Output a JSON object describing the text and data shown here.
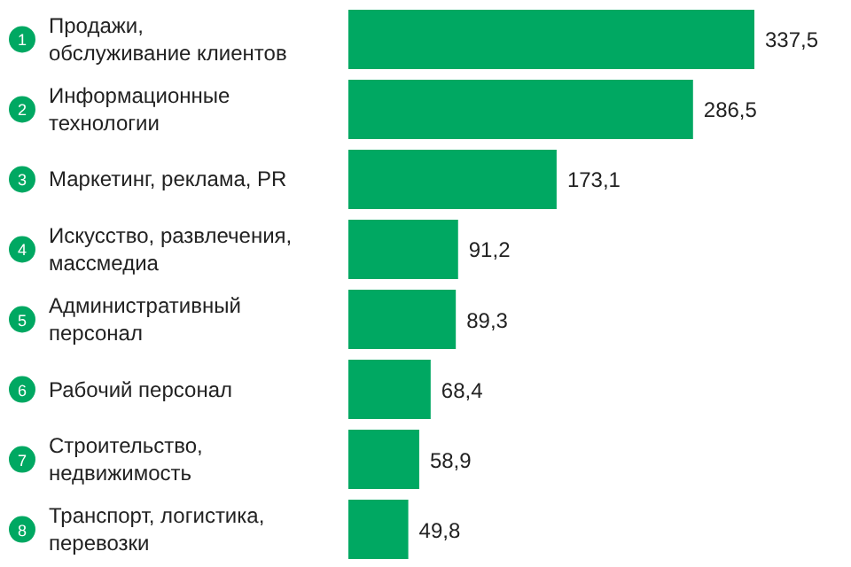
{
  "chart_data": {
    "type": "bar",
    "orientation": "horizontal",
    "categories": [
      "Продажи,\nобслуживание клиентов",
      "Информационные\nтехнологии",
      "Маркетинг, реклама, PR",
      "Искусство, развлечения,\nмассмедиа",
      "Административный\nперсонал",
      "Рабочий персонал",
      "Строительство,\nнедвижимость",
      "Транспорт, логистика,\nперевозки"
    ],
    "values": [
      337.5,
      286.5,
      173.1,
      91.2,
      89.3,
      68.4,
      58.9,
      49.8
    ],
    "value_labels": [
      "337,5",
      "286,5",
      "173,1",
      "91,2",
      "89,3",
      "68,4",
      "58,9",
      "49,8"
    ],
    "color": "#00a862",
    "annotations": [
      "1",
      "2",
      "3",
      "4",
      "5",
      "6",
      "7",
      "8"
    ]
  }
}
